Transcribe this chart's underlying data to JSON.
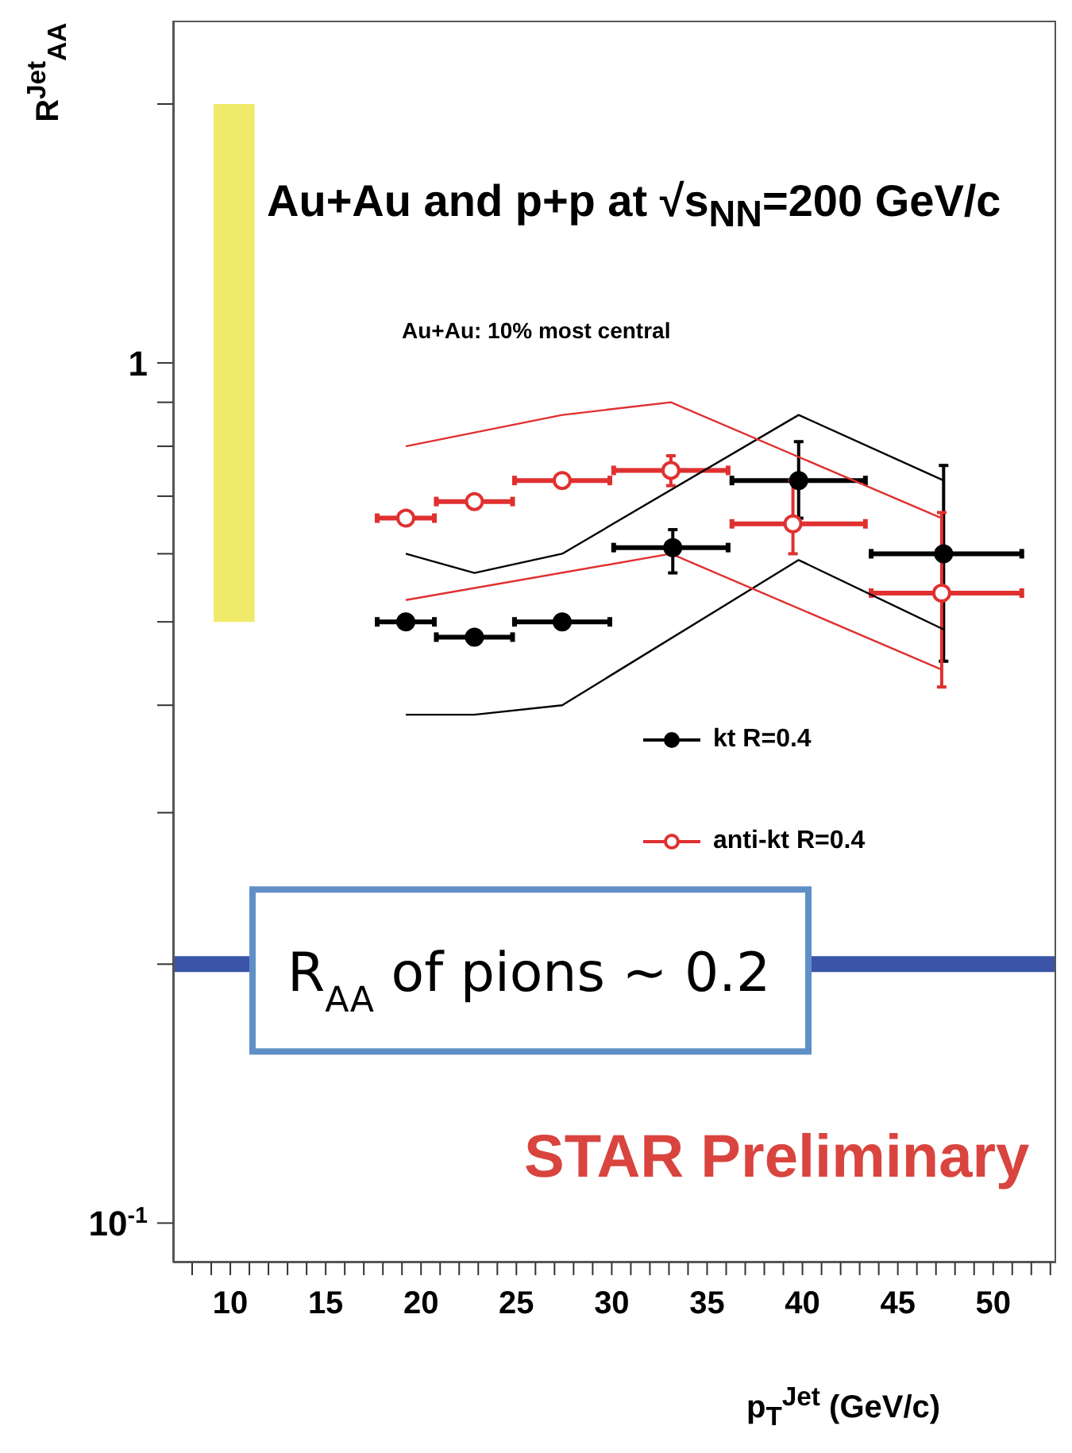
{
  "chart_data": {
    "type": "scatter",
    "title": "Au+Au and p+p at √s$_{NN}$=200 GeV/c",
    "subtitle": "Au+Au: 10% most central",
    "xlabel": "p$_{T}$$^{Jet}$ (GeV/c)",
    "ylabel": "R$^{Jet}$$_{AA}$",
    "annotations": [
      "STAR Preliminary"
    ],
    "log": "y",
    "xlim": [
      7,
      53.3
    ],
    "xticks": [
      {
        "value": 8,
        "label": null
      },
      {
        "value": 9,
        "label": null
      },
      10,
      {
        "value": 11,
        "label": null
      },
      {
        "value": 12,
        "label": null
      },
      {
        "value": 13,
        "label": null
      },
      {
        "value": 14,
        "label": null
      },
      15,
      {
        "value": 16,
        "label": null
      },
      {
        "value": 17,
        "label": null
      },
      {
        "value": 18,
        "label": null
      },
      {
        "value": 19,
        "label": null
      },
      20,
      {
        "value": 21,
        "label": null
      },
      {
        "value": 22,
        "label": null
      },
      {
        "value": 23,
        "label": null
      },
      {
        "value": 24,
        "label": null
      },
      25,
      {
        "value": 26,
        "label": null
      },
      {
        "value": 27,
        "label": null
      },
      {
        "value": 28,
        "label": null
      },
      {
        "value": 29,
        "label": null
      },
      30,
      {
        "value": 31,
        "label": null
      },
      {
        "value": 32,
        "label": null
      },
      {
        "value": 33,
        "label": null
      },
      {
        "value": 34,
        "label": null
      },
      35,
      {
        "value": 36,
        "label": null
      },
      {
        "value": 37,
        "label": null
      },
      {
        "value": 38,
        "label": null
      },
      {
        "value": 39,
        "label": null
      },
      40,
      {
        "value": 41,
        "label": null
      },
      {
        "value": 42,
        "label": null
      },
      {
        "value": 43,
        "label": null
      },
      {
        "value": 44,
        "label": null
      },
      45,
      {
        "value": 46,
        "label": null
      },
      {
        "value": 47,
        "label": null
      },
      {
        "value": 48,
        "label": null
      },
      {
        "value": 49,
        "label": null
      },
      50,
      {
        "value": 51,
        "label": null
      },
      {
        "value": 52,
        "label": null
      },
      {
        "value": 53,
        "label": null
      }
    ],
    "ylim": [
      0.09,
      2.5
    ],
    "yticks": [
      {
        "value": 0.1,
        "label": "10$^{-1}$"
      },
      {
        "value": 0.2,
        "label": null
      },
      {
        "value": 0.3,
        "label": null
      },
      {
        "value": 0.4,
        "label": null
      },
      {
        "value": 0.5,
        "label": null
      },
      {
        "value": 0.6,
        "label": null
      },
      {
        "value": 0.7,
        "label": null
      },
      {
        "value": 0.8,
        "label": null
      },
      {
        "value": 0.9,
        "label": null
      },
      1,
      {
        "value": 2,
        "label": null
      }
    ],
    "marker": "circle",
    "legend": "right",
    "ref_lines": [
      {
        "axis": "y",
        "value": 0.2,
        "label": "R$_{AA}$ of pions ~ 0.2",
        "color": "#3a55a8"
      }
    ],
    "series": [
      {
        "type": "bar",
        "x": [
          10.2
        ],
        "base": [
          0.5
        ],
        "values": [
          1.5
        ],
        "color": "#f0ea6a"
      },
      {
        "name": "kt R=0.4",
        "color": "#000000",
        "x": [
          19.2,
          22.8,
          27.4,
          33.2,
          39.8,
          47.4
        ],
        "values": [
          0.5,
          0.48,
          0.5,
          0.61,
          0.73,
          0.6
        ],
        "errors": [
          null,
          null,
          null,
          [
            0.57,
            0.64
          ],
          [
            0.66,
            0.81
          ],
          [
            0.45,
            0.76
          ]
        ],
        "xerrors": [
          [
            17.7,
            20.7
          ],
          [
            20.8,
            24.8
          ],
          [
            24.9,
            29.9
          ],
          [
            30.1,
            36.1
          ],
          [
            36.3,
            43.3
          ],
          [
            43.6,
            51.5
          ]
        ]
      },
      {
        "name": "anti-kt R=0.4",
        "color": "#e03030",
        "x": [
          19.2,
          22.8,
          27.4,
          33.1,
          39.5,
          47.3
        ],
        "values": [
          0.66,
          0.69,
          0.73,
          0.75,
          0.65,
          0.54
        ],
        "errors": [
          null,
          null,
          null,
          [
            0.72,
            0.78
          ],
          [
            0.6,
            0.73
          ],
          [
            0.42,
            0.67
          ]
        ],
        "xerrors": [
          [
            17.7,
            20.7
          ],
          [
            20.8,
            24.8
          ],
          [
            24.9,
            29.9
          ],
          [
            30.1,
            36.1
          ],
          [
            36.3,
            43.3
          ],
          [
            43.6,
            51.5
          ]
        ]
      },
      {
        "type": "line",
        "marker": "none",
        "color": "#000000",
        "x": [
          19.2,
          22.8,
          27.4,
          39.8,
          47.4
        ],
        "values": [
          0.6,
          0.57,
          0.6,
          0.87,
          0.73
        ]
      },
      {
        "type": "line",
        "marker": "none",
        "color": "#000000",
        "x": [
          19.2,
          22.8,
          27.4,
          39.8,
          47.4
        ],
        "values": [
          0.39,
          0.39,
          0.4,
          0.59,
          0.49
        ]
      },
      {
        "type": "line",
        "marker": "none",
        "color": "#e03030",
        "x": [
          19.2,
          27.4,
          33.1,
          47.3
        ],
        "values": [
          0.8,
          0.87,
          0.9,
          0.66
        ]
      },
      {
        "type": "line",
        "marker": "none",
        "color": "#e03030",
        "x": [
          19.2,
          33.1,
          47.3
        ],
        "values": [
          0.53,
          0.6,
          0.44
        ]
      }
    ]
  }
}
